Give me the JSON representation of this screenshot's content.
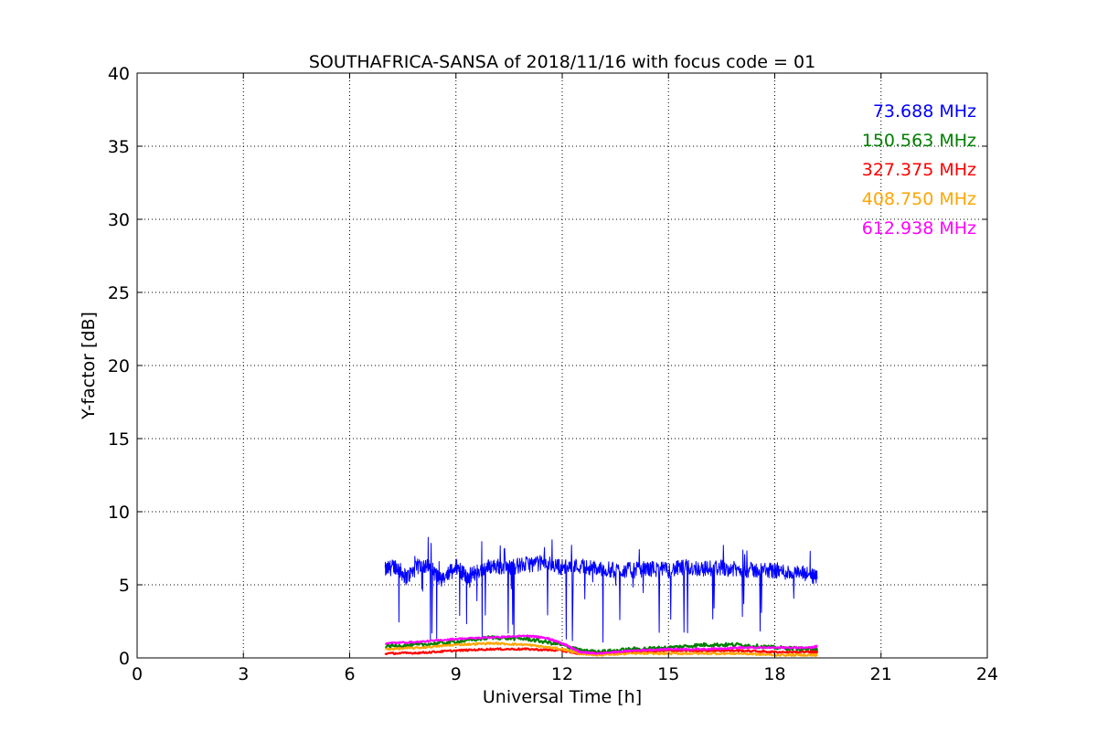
{
  "chart_data": {
    "type": "line",
    "title": "SOUTHAFRICA-SANSA of 2018/11/16 with focus code = 01",
    "xlabel": "Universal Time [h]",
    "ylabel": "Y-factor [dB]",
    "xlim": [
      0,
      24
    ],
    "ylim": [
      0,
      40
    ],
    "xticks": [
      0,
      3,
      6,
      9,
      12,
      15,
      18,
      21,
      24
    ],
    "yticks": [
      0,
      5,
      10,
      15,
      20,
      25,
      30,
      35,
      40
    ],
    "grid": true,
    "legend_position": "top-right",
    "series": [
      {
        "name": "73.688 MHz",
        "color": "#0000ff",
        "x": [
          7.0,
          7.3,
          7.6,
          8.0,
          8.3,
          8.6,
          9.0,
          9.3,
          9.6,
          10.0,
          10.5,
          11.0,
          11.5,
          12.0,
          12.5,
          13.0,
          13.5,
          14.0,
          14.5,
          15.0,
          15.5,
          16.0,
          16.5,
          17.0,
          17.5,
          18.0,
          18.5,
          19.0,
          19.2
        ],
        "y": [
          6.0,
          6.3,
          5.5,
          6.4,
          6.1,
          5.2,
          6.3,
          5.5,
          5.9,
          6.3,
          6.2,
          6.4,
          6.5,
          6.2,
          6.3,
          6.1,
          6.0,
          6.0,
          6.1,
          6.0,
          6.2,
          6.1,
          6.2,
          6.0,
          6.0,
          6.0,
          5.8,
          5.7,
          5.4
        ]
      },
      {
        "name": "150.563 MHz",
        "color": "#008000",
        "x": [
          7.0,
          8.0,
          9.0,
          10.0,
          11.0,
          12.0,
          12.5,
          13.0,
          14.0,
          15.0,
          16.0,
          17.0,
          18.0,
          19.0,
          19.2
        ],
        "y": [
          0.8,
          0.9,
          1.1,
          1.4,
          1.3,
          0.9,
          0.5,
          0.4,
          0.6,
          0.7,
          0.9,
          0.9,
          0.7,
          0.6,
          0.6
        ]
      },
      {
        "name": "327.375 MHz",
        "color": "#ff0000",
        "x": [
          7.0,
          8.0,
          9.0,
          10.0,
          11.0,
          12.0,
          12.5,
          13.0,
          14.0,
          15.0,
          16.0,
          17.0,
          18.0,
          19.0,
          19.2
        ],
        "y": [
          0.3,
          0.35,
          0.5,
          0.6,
          0.6,
          0.5,
          0.3,
          0.3,
          0.4,
          0.5,
          0.5,
          0.5,
          0.4,
          0.4,
          0.4
        ]
      },
      {
        "name": "408.750 MHz",
        "color": "#ffa500",
        "x": [
          7.0,
          8.0,
          9.0,
          10.0,
          11.0,
          12.0,
          12.5,
          13.0,
          14.0,
          15.0,
          16.0,
          17.0,
          18.0,
          19.0,
          19.2
        ],
        "y": [
          0.6,
          0.7,
          0.9,
          1.0,
          0.9,
          0.6,
          0.3,
          0.2,
          0.3,
          0.3,
          0.3,
          0.3,
          0.2,
          0.2,
          0.2
        ]
      },
      {
        "name": "612.938 MHz",
        "color": "#ff00ff",
        "x": [
          7.0,
          8.0,
          9.0,
          10.0,
          11.0,
          11.5,
          12.0,
          12.5,
          13.0,
          14.0,
          15.0,
          16.0,
          17.0,
          18.0,
          19.0,
          19.2
        ],
        "y": [
          1.0,
          1.1,
          1.3,
          1.4,
          1.5,
          1.4,
          1.0,
          0.4,
          0.3,
          0.5,
          0.6,
          0.6,
          0.7,
          0.7,
          0.7,
          0.8
        ]
      }
    ]
  }
}
